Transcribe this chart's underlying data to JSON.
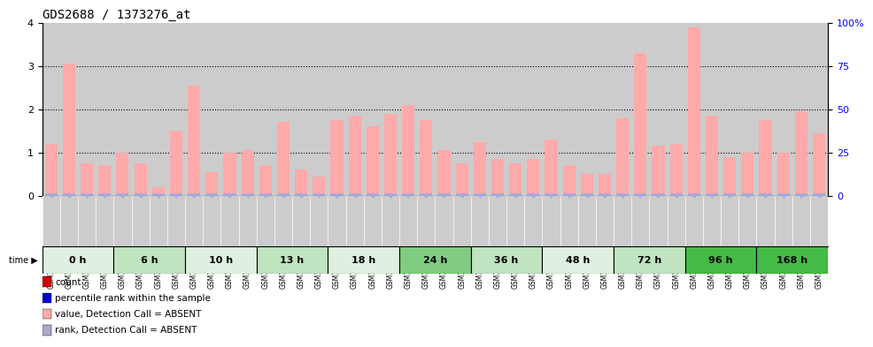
{
  "title": "GDS2688 / 1373276_at",
  "samples": [
    "GSM112209",
    "GSM112210",
    "GSM114869",
    "GSM115079",
    "GSM114896",
    "GSM114897",
    "GSM114898",
    "GSM114899",
    "GSM114870",
    "GSM114871",
    "GSM114872",
    "GSM114873",
    "GSM114874",
    "GSM114875",
    "GSM114876",
    "GSM114877",
    "GSM114882",
    "GSM114883",
    "GSM114884",
    "GSM114885",
    "GSM114886",
    "GSM114893",
    "GSM115077",
    "GSM115078",
    "GSM114887",
    "GSM114888",
    "GSM114889",
    "GSM114890",
    "GSM114891",
    "GSM114892",
    "GSM114894",
    "GSM114895",
    "GSM114900",
    "GSM114901",
    "GSM114902",
    "GSM114903",
    "GSM114904",
    "GSM114905",
    "GSM114906",
    "GSM115076",
    "GSM114878",
    "GSM114879",
    "GSM114880",
    "GSM114881"
  ],
  "values": [
    1.2,
    3.05,
    0.75,
    0.7,
    1.0,
    0.75,
    0.2,
    1.5,
    2.55,
    0.55,
    1.0,
    1.05,
    0.7,
    1.7,
    0.6,
    0.45,
    1.75,
    1.85,
    1.6,
    1.9,
    2.1,
    1.75,
    1.05,
    0.75,
    1.25,
    0.85,
    0.75,
    0.85,
    1.3,
    0.7,
    0.5,
    0.5,
    1.8,
    3.3,
    1.15,
    1.2,
    3.9,
    1.85,
    0.9,
    1.0,
    1.75,
    1.0,
    1.95,
    1.45
  ],
  "time_groups": [
    {
      "label": "0 h",
      "start": 0,
      "end": 4,
      "color": "#e0f0e0"
    },
    {
      "label": "6 h",
      "start": 4,
      "end": 8,
      "color": "#c0e4c0"
    },
    {
      "label": "10 h",
      "start": 8,
      "end": 12,
      "color": "#e0f0e0"
    },
    {
      "label": "13 h",
      "start": 12,
      "end": 16,
      "color": "#c0e4c0"
    },
    {
      "label": "18 h",
      "start": 16,
      "end": 20,
      "color": "#e0f0e0"
    },
    {
      "label": "24 h",
      "start": 20,
      "end": 24,
      "color": "#80cc80"
    },
    {
      "label": "36 h",
      "start": 24,
      "end": 28,
      "color": "#c0e4c0"
    },
    {
      "label": "48 h",
      "start": 28,
      "end": 32,
      "color": "#e0f0e0"
    },
    {
      "label": "72 h",
      "start": 32,
      "end": 36,
      "color": "#c0e4c0"
    },
    {
      "label": "96 h",
      "start": 36,
      "end": 40,
      "color": "#44bb44"
    },
    {
      "label": "168 h",
      "start": 40,
      "end": 44,
      "color": "#44bb44"
    }
  ],
  "ylim_left": [
    0,
    4
  ],
  "ylim_right": [
    0,
    100
  ],
  "yticks_left": [
    0,
    1,
    2,
    3,
    4
  ],
  "yticks_right": [
    0,
    25,
    50,
    75,
    100
  ],
  "yticklabels_right": [
    "0",
    "25",
    "50",
    "75",
    "100%"
  ],
  "bar_color": "#ffaaaa",
  "rank_color": "#aaaadd",
  "bg_color": "#cccccc",
  "legend_items": [
    {
      "color": "#cc0000",
      "label": "count"
    },
    {
      "color": "#0000cc",
      "label": "percentile rank within the sample"
    },
    {
      "color": "#ffaaaa",
      "label": "value, Detection Call = ABSENT"
    },
    {
      "color": "#aaaacc",
      "label": "rank, Detection Call = ABSENT"
    }
  ]
}
